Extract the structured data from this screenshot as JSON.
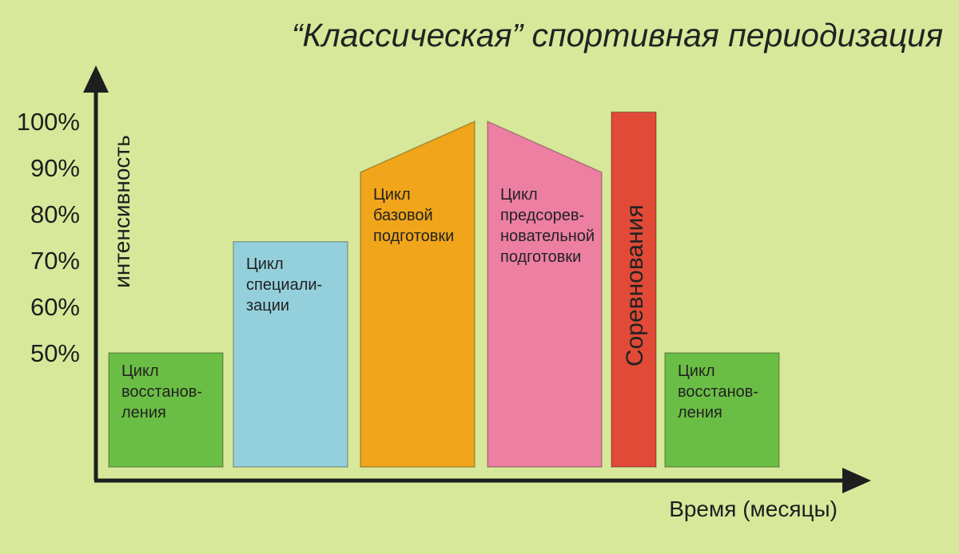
{
  "title": "“Классическая” спортивная периодизация",
  "colors": {
    "background": "#d8e89a",
    "axis": "#1e1e1e",
    "recovery": "#6bbe45",
    "specialization": "#94d0dc",
    "base": "#f0a51a",
    "precompetition": "#ec7fa2",
    "competition": "#e04a37"
  },
  "chart_data": {
    "type": "bar",
    "title": "“Классическая” спортивная периодизация",
    "ylabel": "интенсивность",
    "xlabel": "Время (месяцы)",
    "yticks": [
      "100%",
      "90%",
      "80%",
      "70%",
      "60%",
      "50%"
    ],
    "ylim": [
      50,
      100
    ],
    "y_unit": "%",
    "categories": [
      "Цикл восстанов-ления",
      "Цикл специали-зации",
      "Цикл базовой подготовки",
      "Цикл предсорев-новательной подготовки",
      "Соревнования",
      "Цикл восстанов-ления"
    ],
    "series": [
      {
        "values": [
          {
            "level": [
              50,
              50
            ],
            "color": "#6bbe45",
            "lines": [
              "Цикл",
              "восстанов-",
              "ления"
            ]
          },
          {
            "level": [
              74,
              74
            ],
            "color": "#94d0dc",
            "lines": [
              "Цикл",
              "специали-",
              "зации"
            ]
          },
          {
            "level": [
              89,
              100
            ],
            "color": "#f0a51a",
            "lines": [
              "Цикл",
              "базовой",
              "подготовки"
            ]
          },
          {
            "level": [
              100,
              89
            ],
            "color": "#ec7fa2",
            "lines": [
              "Цикл",
              "предсорев-",
              "новательной",
              "подготовки"
            ]
          },
          {
            "level": [
              102,
              102
            ],
            "color": "#e04a37",
            "lines": [
              "Соревнования"
            ],
            "vertical": true
          },
          {
            "level": [
              50,
              50
            ],
            "color": "#6bbe45",
            "lines": [
              "Цикл",
              "восстанов-",
              "ления"
            ]
          }
        ]
      }
    ],
    "grid": false,
    "legend": "none"
  }
}
